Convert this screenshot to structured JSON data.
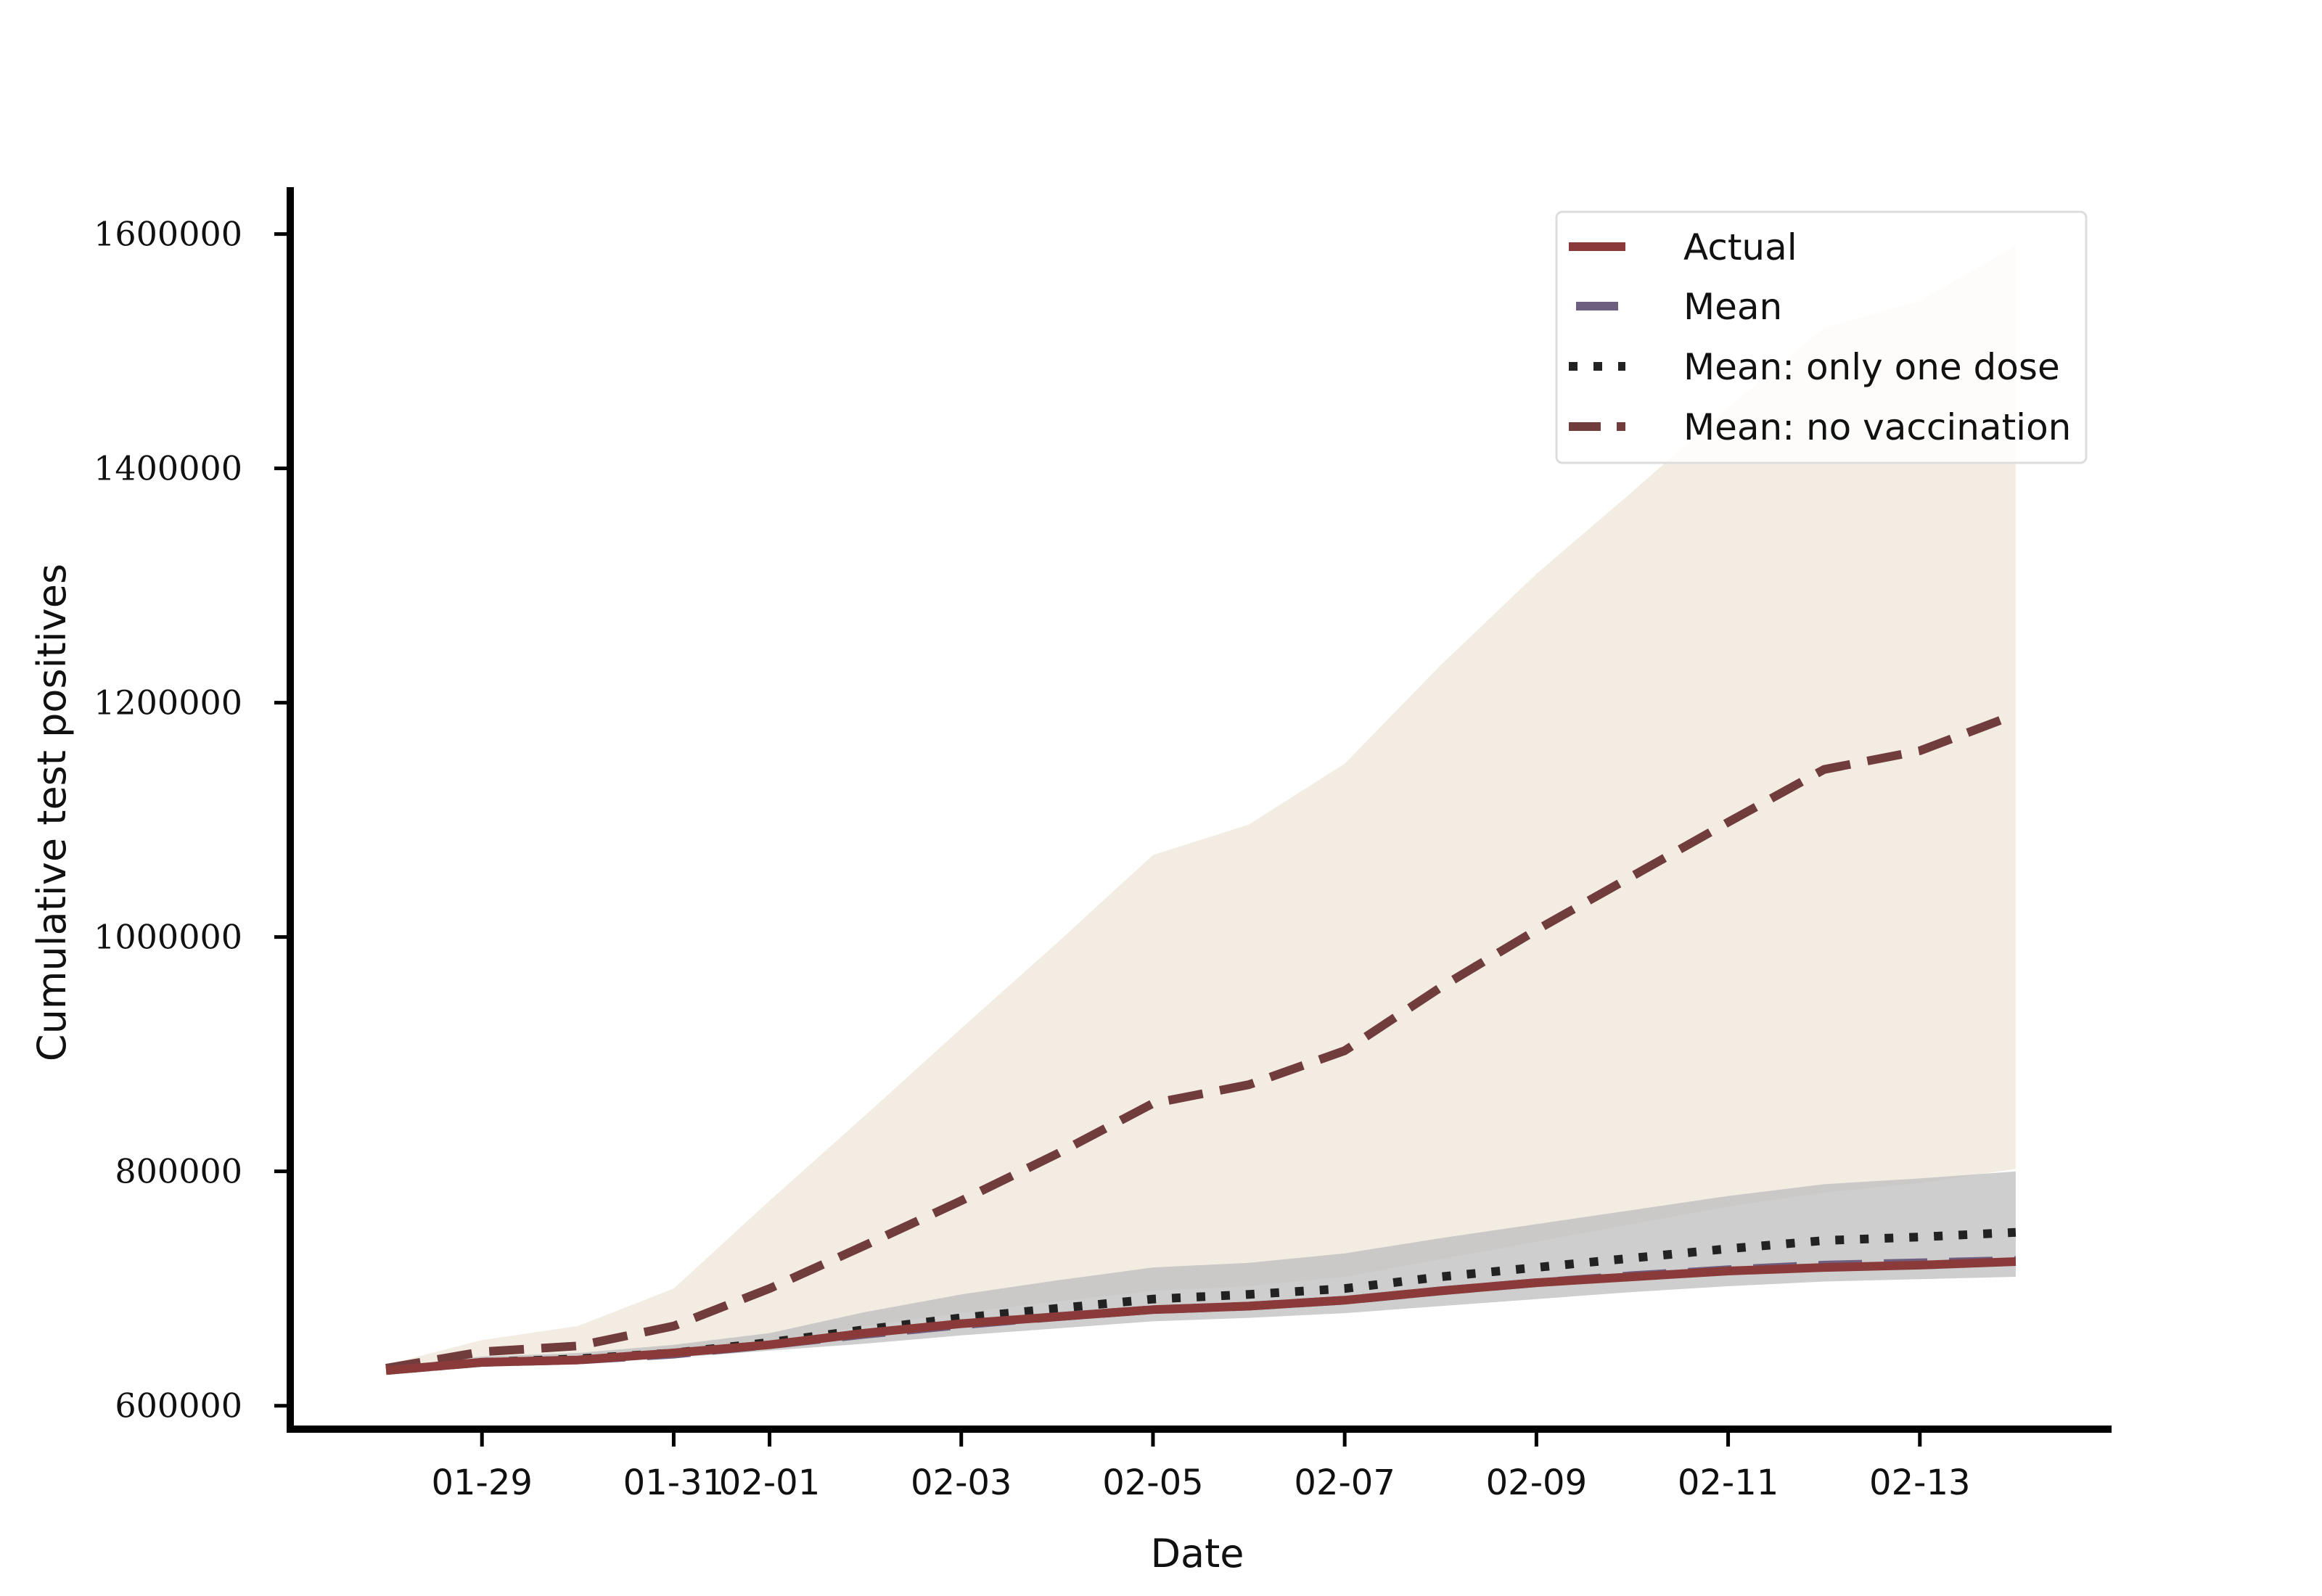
{
  "chart_data": {
    "type": "line",
    "xlabel": "Date",
    "ylabel": "Cumulative test positives",
    "x_tick_labels": [
      "01-29",
      "01-31",
      "02-01",
      "02-03",
      "02-05",
      "02-07",
      "02-09",
      "02-11",
      "02-13"
    ],
    "x_tick_values": [
      "2021-01-29",
      "2021-01-31",
      "2021-02-01",
      "2021-02-03",
      "2021-02-05",
      "2021-02-07",
      "2021-02-09",
      "2021-02-11",
      "2021-02-13"
    ],
    "y_ticks": [
      600000,
      800000,
      1000000,
      1200000,
      1400000,
      1600000
    ],
    "xlim": [
      "2021-01-27",
      "2021-02-15"
    ],
    "ylim": [
      580000,
      1640000
    ],
    "grid": false,
    "legend_position": "top-right",
    "x": [
      "2021-01-28",
      "2021-01-29",
      "2021-01-30",
      "2021-01-31",
      "2021-02-01",
      "2021-02-02",
      "2021-02-03",
      "2021-02-04",
      "2021-02-05",
      "2021-02-06",
      "2021-02-07",
      "2021-02-08",
      "2021-02-09",
      "2021-02-10",
      "2021-02-11",
      "2021-02-12",
      "2021-02-13",
      "2021-02-14"
    ],
    "series": [
      {
        "name": "Actual",
        "style": "solid",
        "color": "#8b3a3a",
        "values": [
          630000,
          637000,
          639000,
          645000,
          652000,
          662000,
          670000,
          676000,
          682000,
          685000,
          690000,
          698000,
          705000,
          710000,
          715000,
          718000,
          720000,
          723000
        ]
      },
      {
        "name": "Mean",
        "style": "long-dash",
        "color": "#6e5f80",
        "values": [
          630000,
          637000,
          639000,
          644000,
          652000,
          661000,
          669000,
          676000,
          682000,
          685000,
          690000,
          698000,
          705000,
          711000,
          716000,
          720000,
          722000,
          724000
        ],
        "band": {
          "color": "#bdbdbd",
          "lower": [
            627000,
            633000,
            636000,
            641000,
            647000,
            653000,
            660000,
            666000,
            672000,
            675000,
            679000,
            685000,
            691000,
            697000,
            702000,
            706000,
            708000,
            710000
          ],
          "upper": [
            633000,
            642000,
            645000,
            652000,
            662000,
            680000,
            695000,
            707000,
            718000,
            722000,
            730000,
            743000,
            755000,
            767000,
            779000,
            789000,
            794000,
            800000
          ]
        }
      },
      {
        "name": "Mean: only one dose",
        "style": "dotted",
        "color": "#222222",
        "values": [
          630000,
          637000,
          640000,
          645000,
          654000,
          665000,
          675000,
          683000,
          691000,
          695000,
          700000,
          710000,
          718000,
          726000,
          734000,
          741000,
          744000,
          748000
        ]
      },
      {
        "name": "Mean: no vaccination",
        "style": "dashed",
        "color": "#703c3c",
        "values": [
          632000,
          646000,
          651000,
          668000,
          700000,
          737000,
          775000,
          815000,
          858000,
          874000,
          903000,
          957000,
          1006000,
          1052000,
          1098000,
          1143000,
          1159000,
          1190000
        ],
        "band": {
          "color": "#f3ece3",
          "lower": [
            628000,
            638000,
            641000,
            646000,
            655000,
            668000,
            679000,
            689000,
            698000,
            702000,
            710000,
            725000,
            740000,
            755000,
            770000,
            782000,
            790000,
            802000
          ],
          "upper": [
            635000,
            656000,
            668000,
            700000,
            775000,
            848000,
            922000,
            995000,
            1070000,
            1096000,
            1148000,
            1232000,
            1310000,
            1380000,
            1452000,
            1520000,
            1543000,
            1590000
          ]
        }
      }
    ]
  }
}
